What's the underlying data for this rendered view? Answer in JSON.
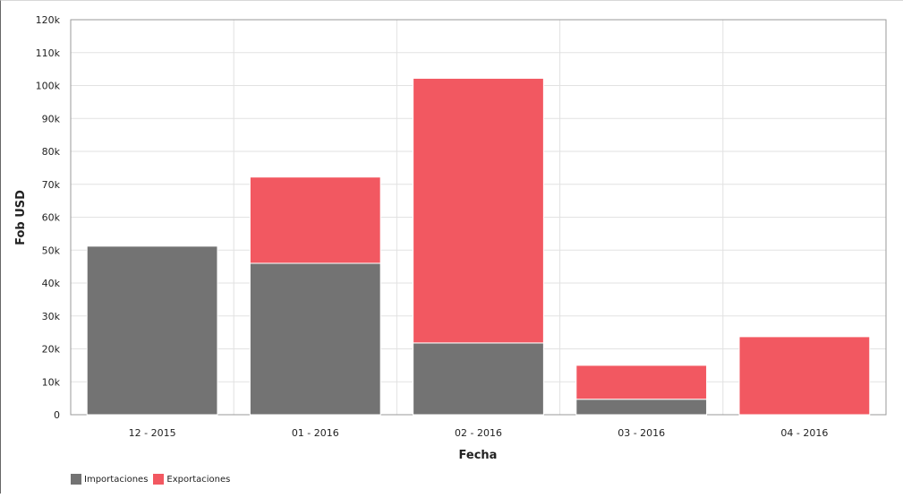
{
  "chart_data": {
    "type": "bar",
    "stacked": true,
    "categories": [
      "12 - 2015",
      "01 - 2016",
      "02 - 2016",
      "03 - 2016",
      "04 - 2016"
    ],
    "series": [
      {
        "name": "Importaciones",
        "color": "#737373",
        "values": [
          51200,
          46000,
          21800,
          4700,
          0
        ]
      },
      {
        "name": "Exportaciones",
        "color": "#f25861",
        "values": [
          0,
          26200,
          80400,
          10300,
          23700
        ]
      }
    ],
    "xlabel": "Fecha",
    "ylabel": "Fob USD",
    "ylim": [
      0,
      120000
    ],
    "yticks": [
      "0",
      "10k",
      "20k",
      "30k",
      "40k",
      "50k",
      "60k",
      "70k",
      "80k",
      "90k",
      "100k",
      "110k",
      "120k"
    ],
    "grid": true,
    "legend_position": "bottom-left"
  }
}
